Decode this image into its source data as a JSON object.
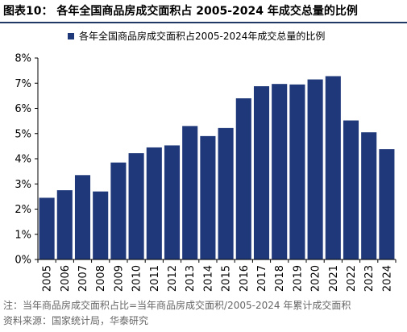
{
  "colors": {
    "bar": "#1f3879",
    "axis": "#000000",
    "rule": "#1f3864"
  },
  "chart_data": {
    "type": "bar",
    "title": "图表10： 各年全国商品房成交面积占 2005-2024 年成交总量的比例",
    "legend_position": "top",
    "grid": false,
    "xlabel": "",
    "ylabel": "",
    "ylim": [
      0,
      8
    ],
    "y_tick_values": [
      0,
      1,
      2,
      3,
      4,
      5,
      6,
      7,
      8
    ],
    "y_tick_labels": [
      "0%",
      "1%",
      "2%",
      "3%",
      "4%",
      "5%",
      "6%",
      "7%",
      "8%"
    ],
    "categories": [
      "2005",
      "2006",
      "2007",
      "2008",
      "2009",
      "2010",
      "2011",
      "2012",
      "2013",
      "2014",
      "2015",
      "2016",
      "2017",
      "2018",
      "2019",
      "2020",
      "2021",
      "2022",
      "2023",
      "2024"
    ],
    "series": [
      {
        "name": "各年全国商品房成交面积占2005-2024年成交总量的比例",
        "values": [
          2.45,
          2.75,
          3.35,
          2.7,
          3.85,
          4.22,
          4.45,
          4.53,
          5.3,
          4.9,
          5.22,
          6.4,
          6.88,
          6.97,
          6.95,
          7.15,
          7.28,
          5.52,
          5.05,
          4.38
        ]
      }
    ]
  },
  "notes": {
    "line1": "注：当年商品房成交面积占比=当年商品房成交面积/2005-2024 年累计成交面积",
    "line2": "资料来源：国家统计局，华泰研究"
  }
}
